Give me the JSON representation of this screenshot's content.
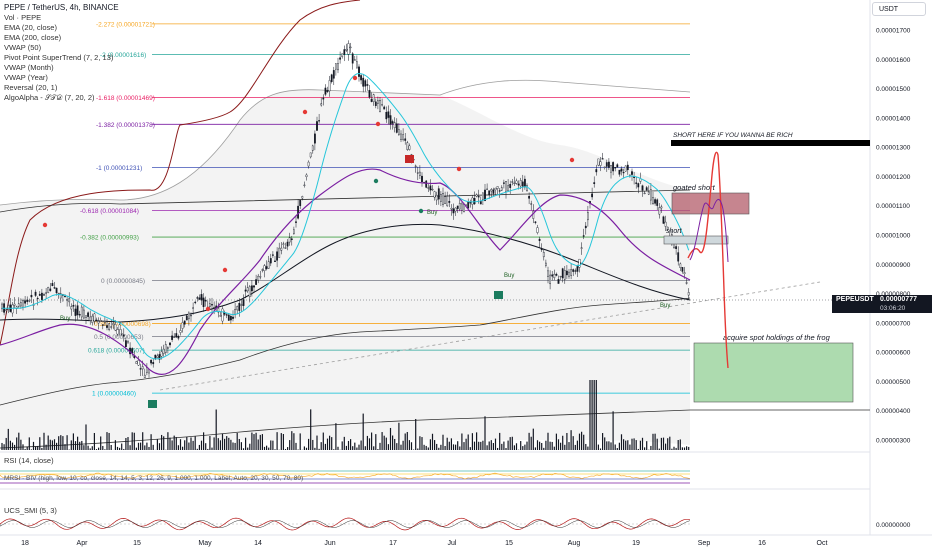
{
  "header": {
    "title": "PEPE / TetherUS, 4h, BINANCE",
    "currency_button": "USDT",
    "indicators": [
      "Vol · PEPE",
      "EMA (20, close)",
      "EMA (200, close)",
      "VWAP (50)",
      "Pivot Point SuperTrend (7, 2, 13)",
      "VWAP (Month)",
      "VWAP (Year)",
      "Reversal (20, 1)",
      "AlgoAlpha - 𝒮𝒯𝒟 (7, 20, 2)"
    ]
  },
  "price_axis": {
    "ticks": [
      "0.00001700",
      "0.00001600",
      "0.00001500",
      "0.00001400",
      "0.00001300",
      "0.00001200",
      "0.00001100",
      "0.00001000",
      "0.00000900",
      "0.00000800",
      "0.00000700",
      "0.00000600",
      "0.00000500",
      "0.00000400",
      "0.00000300"
    ],
    "current_symbol": "PEPEUSDT",
    "current_price": "0.00000777",
    "countdown": "03:06:20"
  },
  "time_axis": {
    "labels": [
      "18",
      "Apr",
      "15",
      "May",
      "14",
      "Jun",
      "17",
      "Jul",
      "15",
      "Aug",
      "19",
      "Sep",
      "16",
      "Oct"
    ]
  },
  "fib_levels": [
    {
      "label": "-2.272 (0.00001721)",
      "price": 1.721e-05,
      "color": "#f6a623"
    },
    {
      "label": "-2 (0.00001616)",
      "price": 1.616e-05,
      "color": "#26a69a"
    },
    {
      "label": "-1.618 (0.00001469)",
      "price": 1.469e-05,
      "color": "#e91e63"
    },
    {
      "label": "-1.382 (0.00001378)",
      "price": 1.378e-05,
      "color": "#7b1fa2"
    },
    {
      "label": "-1 (0.00001231)",
      "price": 1.231e-05,
      "color": "#3f51b5"
    },
    {
      "label": "-0.618 (0.00001084)",
      "price": 1.084e-05,
      "color": "#9c27b0"
    },
    {
      "label": "-0.382 (0.00000993)",
      "price": 9.93e-06,
      "color": "#43a047"
    },
    {
      "label": "0 (0.00000845)",
      "price": 8.45e-06,
      "color": "#787b86"
    },
    {
      "label": "0.382 (0.00000698)",
      "price": 6.98e-06,
      "color": "#f6a623"
    },
    {
      "label": "0.5 (0.00000653)",
      "price": 6.53e-06,
      "color": "#787b86"
    },
    {
      "label": "0.618 (0.00000607)",
      "price": 6.07e-06,
      "color": "#26a69a"
    },
    {
      "label": "1 (0.00000460)",
      "price": 4.6e-06,
      "color": "#00bcd4"
    }
  ],
  "annotations": {
    "rich": "SHORT HERE IF YOU WANNA BE RICH",
    "goated": "goated short",
    "short": "short",
    "acquire": "acquire spot holdings of the frog",
    "buy": "Buy"
  },
  "panes": {
    "rsi": "RSI (14, close)",
    "mrsi": "MRSI · BIV (high, low, 10, co, close, 14, 14, 5, 3, 12, 26, 9, 1.000, 1.000, Label, Auto, 20, 30, 50, 70, 80)",
    "ucs": "UCS_SMI (5, 3)",
    "ucs_tick": "0.00000000"
  },
  "chart_data": {
    "type": "candlestick",
    "symbol": "PEPEUSDT",
    "interval": "4h",
    "ylim": [
      2.7e-06,
      1.8e-05
    ],
    "close_path": [
      {
        "t": "Mar 18",
        "p": 7.5e-06
      },
      {
        "t": "Mar 25",
        "p": 8.2e-06
      },
      {
        "t": "Apr 1",
        "p": 7.2e-06
      },
      {
        "t": "Apr 8",
        "p": 6.8e-06
      },
      {
        "t": "Apr 13",
        "p": 5.2e-06
      },
      {
        "t": "Apr 18",
        "p": 6.2e-06
      },
      {
        "t": "Apr 25",
        "p": 7.8e-06
      },
      {
        "t": "May 1",
        "p": 7.1e-06
      },
      {
        "t": "May 8",
        "p": 8.8e-06
      },
      {
        "t": "May 14",
        "p": 1e-05
      },
      {
        "t": "May 20",
        "p": 1.45e-05
      },
      {
        "t": "May 25",
        "p": 1.65e-05
      },
      {
        "t": "May 30",
        "p": 1.48e-05
      },
      {
        "t": "Jun 5",
        "p": 1.35e-05
      },
      {
        "t": "Jun 10",
        "p": 1.18e-05
      },
      {
        "t": "Jun 17",
        "p": 1.08e-05
      },
      {
        "t": "Jun 24",
        "p": 1.15e-05
      },
      {
        "t": "Jul 1",
        "p": 1.18e-05
      },
      {
        "t": "Jul 6",
        "p": 8.5e-06
      },
      {
        "t": "Jul 12",
        "p": 8.8e-06
      },
      {
        "t": "Jul 16",
        "p": 1.25e-05
      },
      {
        "t": "Jul 22",
        "p": 1.22e-05
      },
      {
        "t": "Jul 28",
        "p": 1.12e-05
      },
      {
        "t": "Aug 2",
        "p": 9.2e-06
      },
      {
        "t": "Aug 5",
        "p": 7.2e-06
      },
      {
        "t": "Aug 10",
        "p": 7.8e-06
      },
      {
        "t": "Aug 16",
        "p": 7.4e-06
      },
      {
        "t": "Aug 22",
        "p": 8.8e-06
      },
      {
        "t": "Aug 27",
        "p": 7.77e-06
      }
    ]
  }
}
